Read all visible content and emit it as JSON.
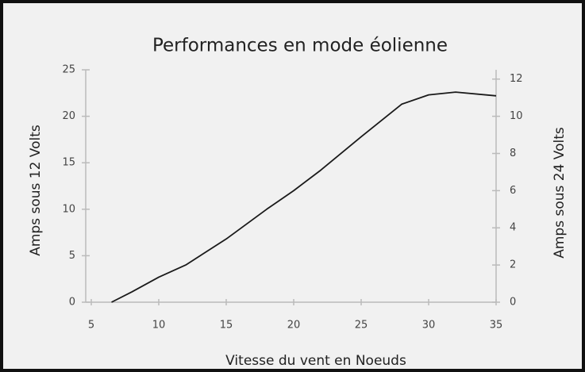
{
  "chart_data": {
    "type": "line",
    "title": "Performances en mode éolienne",
    "xlabel": "Vitesse du vent en Noeuds",
    "ylabel": "Amps sous 12 Volts",
    "y2label": "Amps sous 24 Volts",
    "x": [
      6.5,
      8,
      10,
      12,
      15,
      18,
      20,
      22,
      25,
      28,
      30,
      32,
      35
    ],
    "series": [
      {
        "color": "#1a1a1a",
        "values": [
          0,
          1.1,
          2.7,
          4.0,
          6.8,
          10,
          12,
          14.2,
          17.8,
          21.3,
          22.3,
          22.6,
          22.2
        ]
      }
    ],
    "xlim": [
      5,
      35
    ],
    "xticks": [
      5,
      10,
      15,
      20,
      25,
      30,
      35
    ],
    "ylim": [
      0,
      25
    ],
    "yticks": [
      0,
      5,
      10,
      15,
      20,
      25
    ],
    "y2lim": [
      0,
      12.5
    ],
    "y2ticks": [
      0,
      2,
      4,
      6,
      8,
      10,
      12
    ],
    "grid": false
  }
}
